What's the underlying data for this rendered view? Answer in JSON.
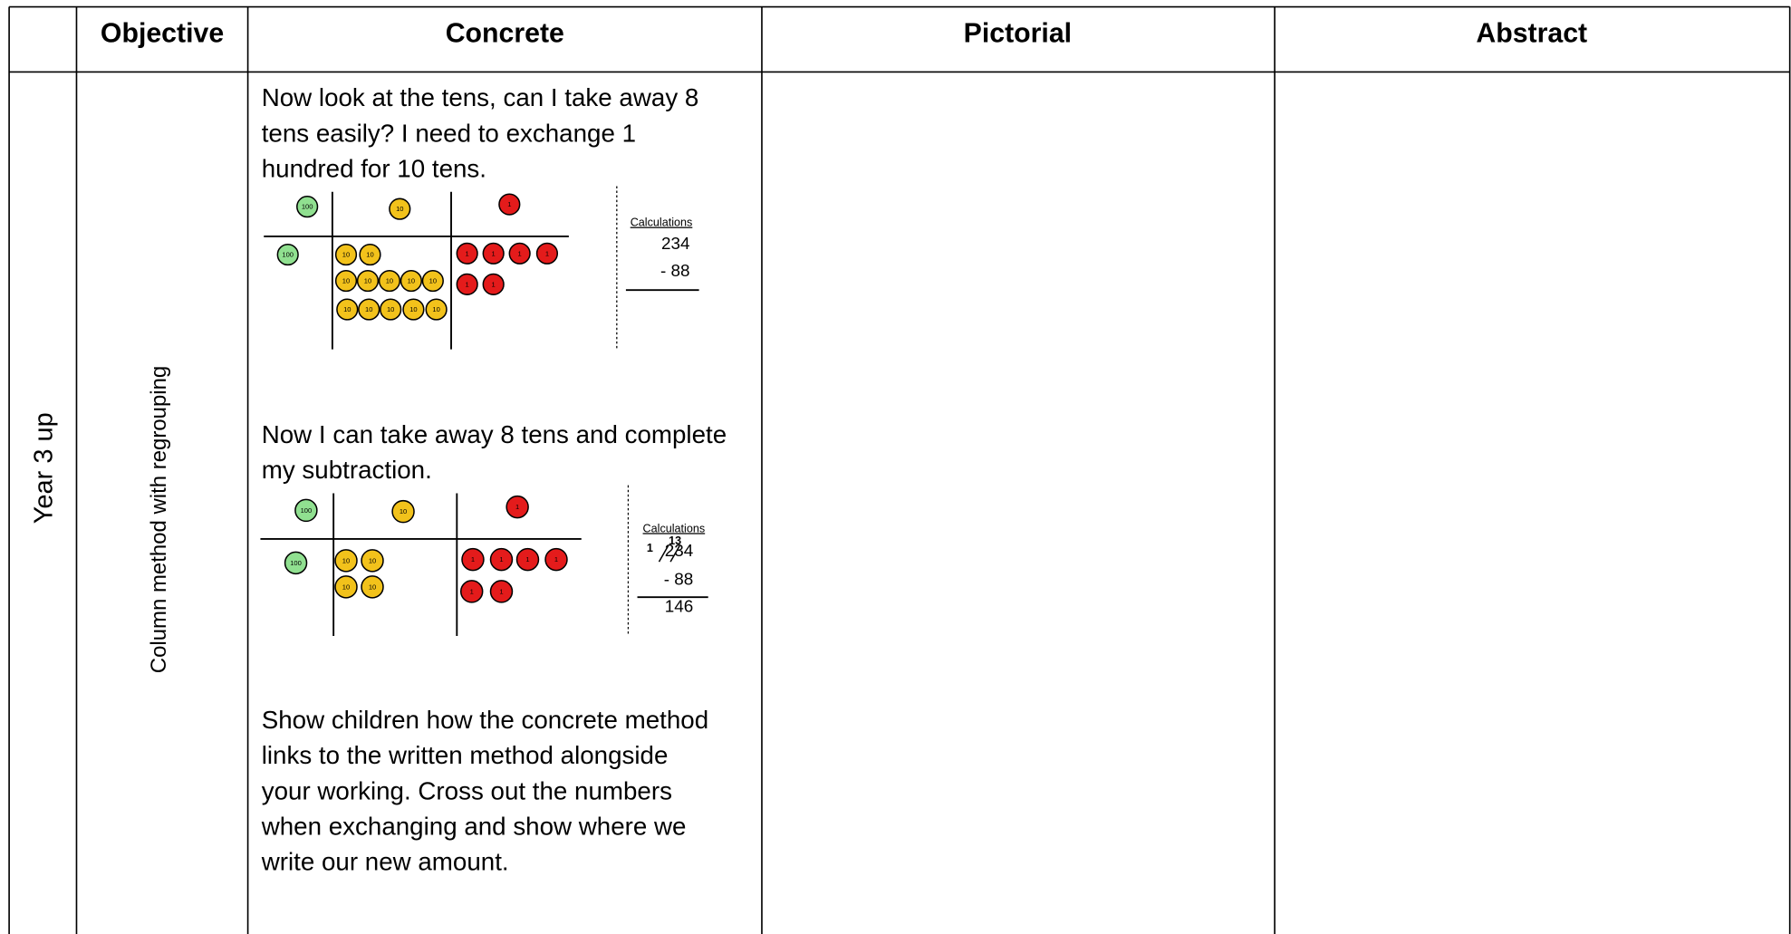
{
  "table": {
    "headers": [
      "Objective",
      "Concrete",
      "Pictorial",
      "Abstract"
    ],
    "rows": [
      {
        "year": "Year 3 up",
        "objective": "Column method with regrouping",
        "concrete": {
          "text1": [
            "Now look at the tens, can I take away 8",
            "tens easily? I need to exchange 1",
            "hundred for 10 tens."
          ],
          "diagram1": {
            "place_headers": [
              "100",
              "10",
              "1"
            ],
            "hundreds": [
              "100"
            ],
            "tens": [
              "10",
              "10",
              "10",
              "10",
              "10",
              "10",
              "10",
              "10",
              "10",
              "10",
              "10",
              "10"
            ],
            "ones": [
              "1",
              "1",
              "1",
              "1",
              "1",
              "1"
            ],
            "calculations": {
              "title": "Calculations",
              "lines": [
                "234",
                "-  88"
              ]
            }
          },
          "text2": [
            "Now I can take away 8 tens and complete",
            "my subtraction."
          ],
          "diagram2": {
            "place_headers": [
              "100",
              "10",
              "1"
            ],
            "hundreds": [
              "100"
            ],
            "tens": [
              "10",
              "10",
              "10",
              "10"
            ],
            "ones": [
              "1",
              "1",
              "1",
              "1",
              "1",
              "1"
            ],
            "calculations": {
              "title": "Calculations",
              "exchange": [
                "1",
                "13"
              ],
              "lines": [
                "234",
                "-  88",
                "146"
              ]
            }
          },
          "text3": [
            "Show children how the concrete method",
            "links to the written method alongside",
            "your working. Cross out the numbers",
            "when exchanging and show where we",
            "write our new amount."
          ]
        }
      }
    ]
  }
}
